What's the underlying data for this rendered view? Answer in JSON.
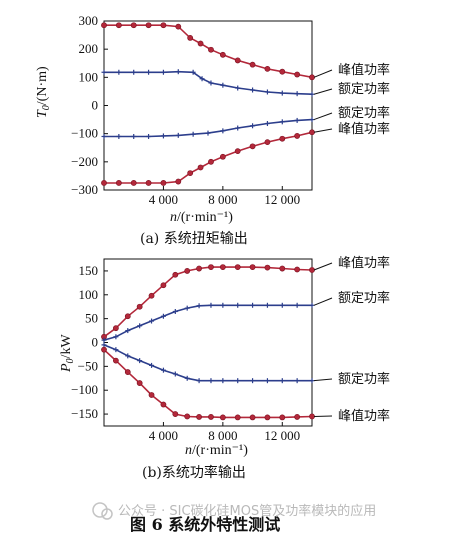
{
  "chart_data": [
    {
      "type": "line",
      "caption": "(a) 系统扭矩输出",
      "ylabel_sym": "T",
      "ylabel_sub": "0",
      "ylabel_unit": "/(N·m)",
      "xlabel_sym": "n",
      "xlabel_unit": "/(r·min⁻¹)",
      "xlim": [
        0,
        14000
      ],
      "ylim": [
        -300,
        300
      ],
      "xticks": [
        4000,
        8000,
        12000
      ],
      "xtick_labels": [
        "4 000",
        "8 000",
        "12 000"
      ],
      "yticks": [
        300,
        200,
        100,
        0,
        -100,
        -200,
        -300
      ],
      "ytick_labels": [
        "300",
        "200",
        "100",
        "0",
        "−100",
        "−200",
        "−300"
      ],
      "series": [
        {
          "name": "峰值功率",
          "color": "#b3283a",
          "marker": "circle",
          "x": [
            0,
            1000,
            2000,
            3000,
            4000,
            5000,
            5800,
            6500,
            7200,
            8000,
            9000,
            10000,
            11000,
            12000,
            13000,
            14000
          ],
          "y": [
            285,
            285,
            285,
            285,
            285,
            280,
            240,
            220,
            198,
            180,
            160,
            145,
            130,
            120,
            110,
            100
          ]
        },
        {
          "name": "额定功率",
          "color": "#2c3e8c",
          "marker": "plus",
          "x": [
            0,
            1000,
            2000,
            3000,
            4000,
            5000,
            6000,
            6600,
            7200,
            8000,
            9000,
            10000,
            11000,
            12000,
            13000,
            14000
          ],
          "y": [
            118,
            118,
            118,
            118,
            118,
            120,
            118,
            95,
            80,
            72,
            62,
            55,
            48,
            44,
            42,
            40
          ]
        },
        {
          "name": "额定功率",
          "color": "#2c3e8c",
          "marker": "plus",
          "x": [
            0,
            1000,
            2000,
            3000,
            4000,
            5000,
            6000,
            7000,
            8000,
            9000,
            10000,
            11000,
            12000,
            13000,
            14000
          ],
          "y": [
            -110,
            -110,
            -110,
            -110,
            -108,
            -106,
            -102,
            -98,
            -90,
            -80,
            -72,
            -64,
            -58,
            -53,
            -50
          ]
        },
        {
          "name": "峰值功率",
          "color": "#b3283a",
          "marker": "circle",
          "x": [
            0,
            1000,
            2000,
            3000,
            4000,
            5000,
            5800,
            6500,
            7200,
            8000,
            9000,
            10000,
            11000,
            12000,
            13000,
            14000
          ],
          "y": [
            -275,
            -275,
            -275,
            -275,
            -275,
            -270,
            -240,
            -220,
            -200,
            -182,
            -162,
            -145,
            -130,
            -118,
            -108,
            -95
          ]
        }
      ]
    },
    {
      "type": "line",
      "caption": "(b)系统功率输出",
      "ylabel_sym": "P",
      "ylabel_sub": "0",
      "ylabel_unit": "/kW",
      "xlabel_sym": "n",
      "xlabel_unit": "/(r·min⁻¹)",
      "xlim": [
        0,
        14000
      ],
      "ylim": [
        -175,
        175
      ],
      "xticks": [
        4000,
        8000,
        12000
      ],
      "xtick_labels": [
        "4 000",
        "8 000",
        "12 000"
      ],
      "yticks": [
        150,
        100,
        50,
        0,
        -50,
        -100,
        -150
      ],
      "ytick_labels": [
        "150",
        "100",
        "50",
        "0",
        "−50",
        "−100",
        "−150"
      ],
      "series": [
        {
          "name": "峰值功率",
          "color": "#b3283a",
          "marker": "circle",
          "x": [
            0,
            800,
            1600,
            2400,
            3200,
            4000,
            4800,
            5600,
            6400,
            7200,
            8000,
            9000,
            10000,
            11000,
            12000,
            13000,
            14000
          ],
          "y": [
            12,
            30,
            55,
            75,
            98,
            120,
            142,
            150,
            155,
            158,
            158,
            158,
            158,
            157,
            155,
            153,
            152
          ]
        },
        {
          "name": "额定功率",
          "color": "#2c3e8c",
          "marker": "plus",
          "x": [
            0,
            800,
            1600,
            2400,
            3200,
            4000,
            4800,
            5600,
            6400,
            7200,
            8000,
            9000,
            10000,
            11000,
            12000,
            13000,
            14000
          ],
          "y": [
            5,
            12,
            25,
            35,
            45,
            55,
            65,
            72,
            77,
            78,
            78,
            78,
            78,
            78,
            78,
            78,
            78
          ]
        },
        {
          "name": "额定功率",
          "color": "#2c3e8c",
          "marker": "plus",
          "x": [
            0,
            800,
            1600,
            2400,
            3200,
            4000,
            4800,
            5600,
            6400,
            7200,
            8000,
            9000,
            10000,
            11000,
            12000,
            13000,
            14000
          ],
          "y": [
            -5,
            -15,
            -28,
            -38,
            -48,
            -58,
            -66,
            -75,
            -80,
            -80,
            -80,
            -80,
            -80,
            -80,
            -80,
            -80,
            -80
          ]
        },
        {
          "name": "峰值功率",
          "color": "#b3283a",
          "marker": "circle",
          "x": [
            0,
            800,
            1600,
            2400,
            3200,
            4000,
            4800,
            5600,
            6400,
            7200,
            8000,
            9000,
            10000,
            11000,
            12000,
            13000,
            14000
          ],
          "y": [
            -15,
            -38,
            -62,
            -85,
            -110,
            -130,
            -150,
            -155,
            -156,
            -156,
            -157,
            -157,
            -157,
            -157,
            -157,
            -156,
            -155
          ]
        }
      ]
    }
  ],
  "figure_title": "图 6   系统外特性测试",
  "watermark": "公众号 · SIC碳化硅MOS管及功率模块的应用"
}
